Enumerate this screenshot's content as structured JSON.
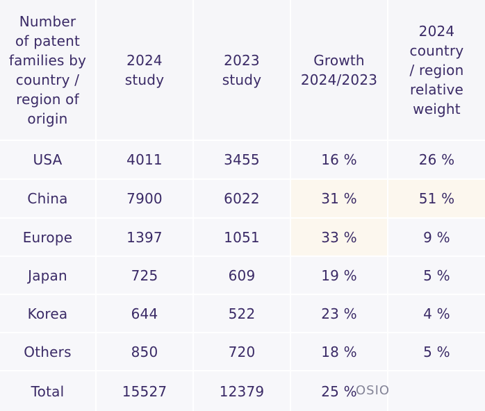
{
  "table": {
    "headers": [
      "Number\nof patent\nfamilies by\ncountry /\nregion of\norigin",
      "2024\nstudy",
      "2023\nstudy",
      "Growth\n2024/2023",
      "2024\ncountry\n/ region\nrelative\nweight"
    ],
    "rows": [
      [
        "USA",
        "4011",
        "3455",
        "16 %",
        "26 %"
      ],
      [
        "China",
        "7900",
        "6022",
        "31 %",
        "51 %"
      ],
      [
        "Europe",
        "1397",
        "1051",
        "33 %",
        "9 %"
      ],
      [
        "Japan",
        "725",
        "609",
        "19 %",
        "5 %"
      ],
      [
        "Korea",
        "644",
        "522",
        "23 %",
        "4 %"
      ],
      [
        "Others",
        "850",
        "720",
        "18 %",
        "5 %"
      ],
      [
        "Total",
        "15527",
        "12379",
        "25 %",
        ""
      ]
    ]
  },
  "watermark": {
    "text": "OSIO"
  },
  "colors": {
    "text": "#3a2a66",
    "cell_bg": "#f7f7fa",
    "highlight_bg": "#fcf7ee",
    "grid_line": "#ffffff"
  }
}
